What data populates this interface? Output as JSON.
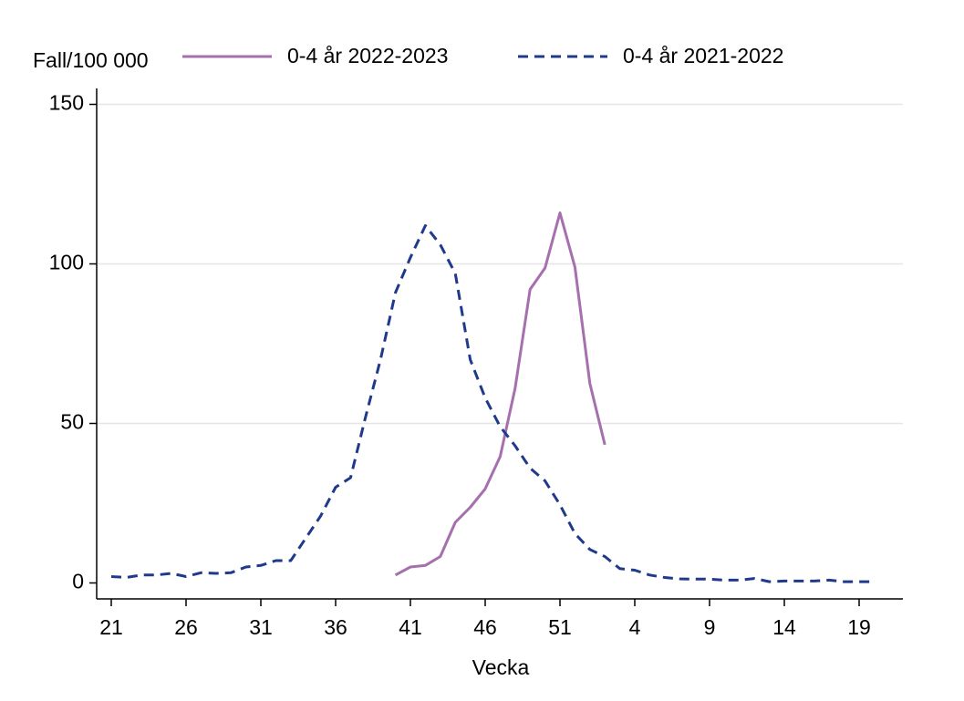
{
  "chart_data": {
    "type": "line",
    "y_label": "Fall/100 000",
    "x_label": "Vecka",
    "categories": [
      "21",
      null,
      null,
      null,
      null,
      "26",
      null,
      null,
      null,
      null,
      "31",
      null,
      null,
      null,
      null,
      "36",
      null,
      null,
      null,
      null,
      "41",
      null,
      null,
      null,
      null,
      "46",
      null,
      null,
      null,
      null,
      "51",
      null,
      null,
      null,
      null,
      "4",
      null,
      null,
      null,
      null,
      "9",
      null,
      null,
      null,
      null,
      "14",
      null,
      null,
      null,
      null,
      "19",
      null
    ],
    "series": [
      {
        "name": "0-4 år 2022-2023",
        "color": "#a66fae",
        "dash": "solid",
        "values": [
          null,
          null,
          null,
          null,
          null,
          null,
          null,
          null,
          null,
          null,
          null,
          null,
          null,
          null,
          null,
          null,
          null,
          null,
          null,
          2.5,
          5,
          5.5,
          8.3,
          19,
          23.7,
          29.5,
          39.6,
          61,
          92,
          98.7,
          116,
          99,
          62.5,
          43.3,
          null,
          null,
          null,
          null,
          null,
          null,
          null,
          null,
          null,
          null,
          null,
          null,
          null,
          null,
          null,
          null,
          null,
          null
        ]
      },
      {
        "name": "0-4 år 2021-2022",
        "color": "#1f3a8a",
        "dash": "dashed",
        "values": [
          2,
          1.7,
          2.5,
          2.5,
          3,
          2,
          3.2,
          3,
          3.2,
          5,
          5.5,
          7,
          7,
          14,
          21,
          30,
          33,
          52,
          70,
          91,
          102,
          112,
          106,
          97,
          70,
          58,
          49,
          43,
          36,
          32,
          24.5,
          15.5,
          10.5,
          8.3,
          4.5,
          4,
          2.5,
          1.7,
          1.3,
          1.2,
          1.2,
          0.9,
          0.9,
          1.4,
          0.4,
          0.6,
          0.6,
          0.6,
          0.9,
          0.4,
          0.4,
          0.4
        ]
      }
    ],
    "ylim": [
      -5,
      155
    ],
    "yticks": [
      0,
      50,
      100,
      150
    ],
    "grid": true
  }
}
